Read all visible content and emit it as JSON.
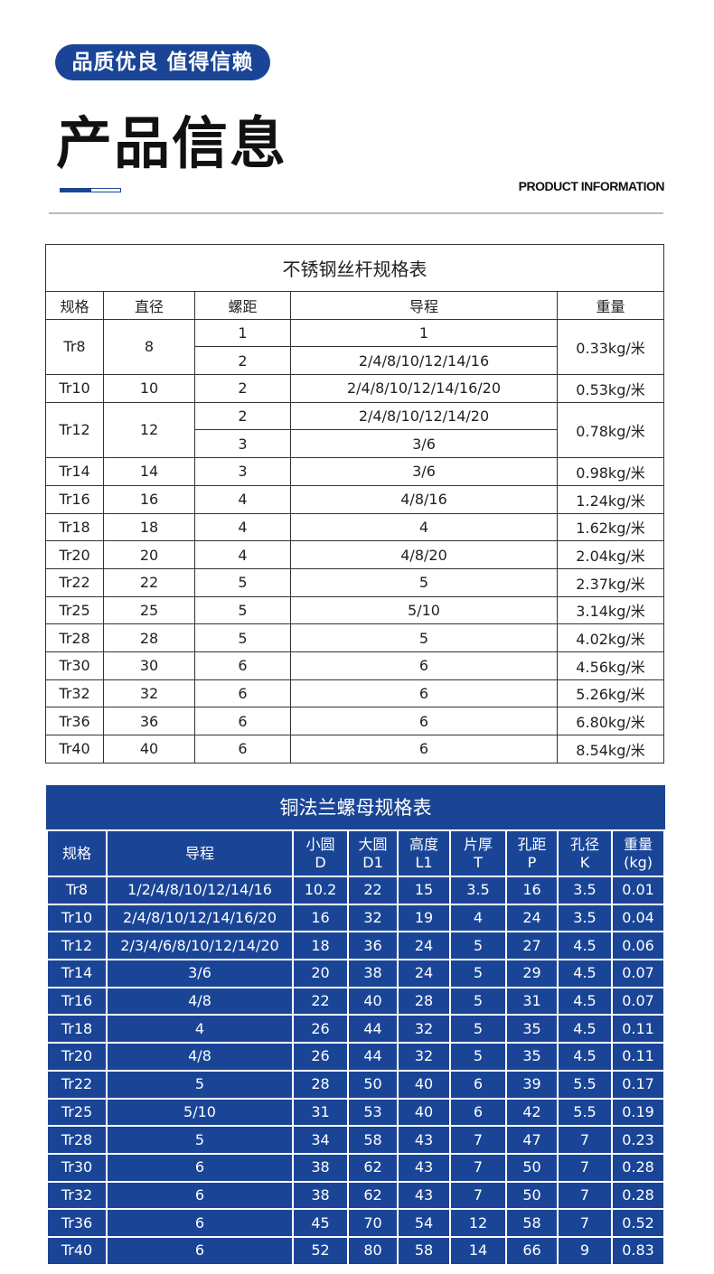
{
  "header": {
    "badge": "品质优良 值得信赖",
    "title": "产品信息",
    "subtitle": "PRODUCT INFORMATION",
    "accent_color": "#1a4597"
  },
  "table1": {
    "caption": "不锈钢丝杆规格表",
    "columns": [
      "规格",
      "直径",
      "螺距",
      "导程",
      "重量"
    ],
    "rows": [
      {
        "spec": "Tr8",
        "diameter": "8",
        "weight": "0.33kg/米",
        "sub": [
          [
            "1",
            "1"
          ],
          [
            "2",
            "2/4/8/10/12/14/16"
          ]
        ]
      },
      {
        "spec": "Tr10",
        "diameter": "10",
        "weight": "0.53kg/米",
        "sub": [
          [
            "2",
            "2/4/8/10/12/14/16/20"
          ]
        ]
      },
      {
        "spec": "Tr12",
        "diameter": "12",
        "weight": "0.78kg/米",
        "sub": [
          [
            "2",
            "2/4/8/10/12/14/20"
          ],
          [
            "3",
            "3/6"
          ]
        ]
      },
      {
        "spec": "Tr14",
        "diameter": "14",
        "weight": "0.98kg/米",
        "sub": [
          [
            "3",
            "3/6"
          ]
        ]
      },
      {
        "spec": "Tr16",
        "diameter": "16",
        "weight": "1.24kg/米",
        "sub": [
          [
            "4",
            "4/8/16"
          ]
        ]
      },
      {
        "spec": "Tr18",
        "diameter": "18",
        "weight": "1.62kg/米",
        "sub": [
          [
            "4",
            "4"
          ]
        ]
      },
      {
        "spec": "Tr20",
        "diameter": "20",
        "weight": "2.04kg/米",
        "sub": [
          [
            "4",
            "4/8/20"
          ]
        ]
      },
      {
        "spec": "Tr22",
        "diameter": "22",
        "weight": "2.37kg/米",
        "sub": [
          [
            "5",
            "5"
          ]
        ]
      },
      {
        "spec": "Tr25",
        "diameter": "25",
        "weight": "3.14kg/米",
        "sub": [
          [
            "5",
            "5/10"
          ]
        ]
      },
      {
        "spec": "Tr28",
        "diameter": "28",
        "weight": "4.02kg/米",
        "sub": [
          [
            "5",
            "5"
          ]
        ]
      },
      {
        "spec": "Tr30",
        "diameter": "30",
        "weight": "4.56kg/米",
        "sub": [
          [
            "6",
            "6"
          ]
        ]
      },
      {
        "spec": "Tr32",
        "diameter": "32",
        "weight": "5.26kg/米",
        "sub": [
          [
            "6",
            "6"
          ]
        ]
      },
      {
        "spec": "Tr36",
        "diameter": "36",
        "weight": "6.80kg/米",
        "sub": [
          [
            "6",
            "6"
          ]
        ]
      },
      {
        "spec": "Tr40",
        "diameter": "40",
        "weight": "8.54kg/米",
        "sub": [
          [
            "6",
            "6"
          ]
        ]
      }
    ]
  },
  "table2": {
    "caption": "铜法兰螺母规格表",
    "columns": [
      [
        "规格",
        ""
      ],
      [
        "导程",
        ""
      ],
      [
        "小圆",
        "D"
      ],
      [
        "大圆",
        "D1"
      ],
      [
        "高度",
        "L1"
      ],
      [
        "片厚",
        "T"
      ],
      [
        "孔距",
        "P"
      ],
      [
        "孔径",
        "K"
      ],
      [
        "重量",
        "(kg)"
      ]
    ],
    "rows": [
      [
        "Tr8",
        "1/2/4/8/10/12/14/16",
        "10.2",
        "22",
        "15",
        "3.5",
        "16",
        "3.5",
        "0.01"
      ],
      [
        "Tr10",
        "2/4/8/10/12/14/16/20",
        "16",
        "32",
        "19",
        "4",
        "24",
        "3.5",
        "0.04"
      ],
      [
        "Tr12",
        "2/3/4/6/8/10/12/14/20",
        "18",
        "36",
        "24",
        "5",
        "27",
        "4.5",
        "0.06"
      ],
      [
        "Tr14",
        "3/6",
        "20",
        "38",
        "24",
        "5",
        "29",
        "4.5",
        "0.07"
      ],
      [
        "Tr16",
        "4/8",
        "22",
        "40",
        "28",
        "5",
        "31",
        "4.5",
        "0.07"
      ],
      [
        "Tr18",
        "4",
        "26",
        "44",
        "32",
        "5",
        "35",
        "4.5",
        "0.11"
      ],
      [
        "Tr20",
        "4/8",
        "26",
        "44",
        "32",
        "5",
        "35",
        "4.5",
        "0.11"
      ],
      [
        "Tr22",
        "5",
        "28",
        "50",
        "40",
        "6",
        "39",
        "5.5",
        "0.17"
      ],
      [
        "Tr25",
        "5/10",
        "31",
        "53",
        "40",
        "6",
        "42",
        "5.5",
        "0.19"
      ],
      [
        "Tr28",
        "5",
        "34",
        "58",
        "43",
        "7",
        "47",
        "7",
        "0.23"
      ],
      [
        "Tr30",
        "6",
        "38",
        "62",
        "43",
        "7",
        "50",
        "7",
        "0.28"
      ],
      [
        "Tr32",
        "6",
        "38",
        "62",
        "43",
        "7",
        "50",
        "7",
        "0.28"
      ],
      [
        "Tr36",
        "6",
        "45",
        "70",
        "54",
        "12",
        "58",
        "7",
        "0.52"
      ],
      [
        "Tr40",
        "6",
        "52",
        "80",
        "58",
        "14",
        "66",
        "9",
        "0.83"
      ]
    ]
  }
}
